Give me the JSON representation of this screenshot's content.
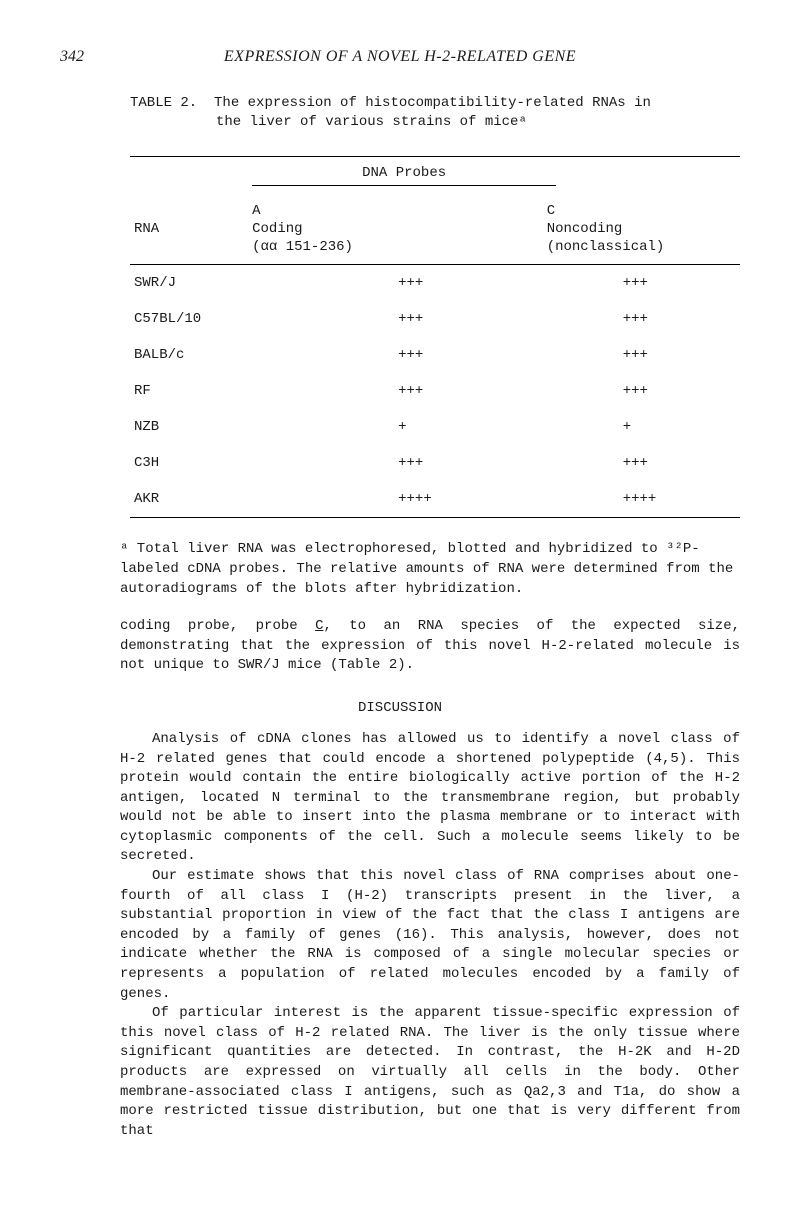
{
  "page_number": "342",
  "running_title": "EXPRESSION OF A NOVEL H-2-RELATED GENE",
  "table": {
    "label": "TABLE 2.",
    "caption_line1": "The expression of histocompatibility-related RNAs in",
    "caption_line2": "the liver of various strains of miceᵃ",
    "probes_label": "DNA Probes",
    "rna_label": "RNA",
    "colA_top": "A",
    "colA_mid": "Coding",
    "colA_bot": "(αα 151-236)",
    "colC_top": "C",
    "colC_mid": "Noncoding",
    "colC_bot": "(nonclassical)",
    "rows": [
      {
        "rna": "SWR/J",
        "a": "+++",
        "c": "+++"
      },
      {
        "rna": "C57BL/10",
        "a": "+++",
        "c": "+++"
      },
      {
        "rna": "BALB/c",
        "a": "+++",
        "c": "+++"
      },
      {
        "rna": "RF",
        "a": "+++",
        "c": "+++"
      },
      {
        "rna": "NZB",
        "a": "+",
        "c": "+"
      },
      {
        "rna": "C3H",
        "a": "+++",
        "c": "+++"
      },
      {
        "rna": "AKR",
        "a": "++++",
        "c": "++++"
      }
    ]
  },
  "footnote": "ᵃ Total liver RNA was electrophoresed, blotted and hybridized to ³²P-labeled cDNA probes.  The relative amounts of RNA were determined from the autoradiograms of the blots after hybridization.",
  "para_coding_pre": "coding probe, probe ",
  "para_coding_letter": "C",
  "para_coding_post": ", to an RNA species of the expected size, demonstrating that the expression of this novel H-2-related molecule is not unique to SWR/J mice (Table 2).",
  "discussion_heading": "DISCUSSION",
  "body1": "Analysis of cDNA clones has allowed us to identify a novel class of H-2 related genes that could encode a shortened polypeptide (4,5).  This protein would contain the entire biologically active portion of the H-2 antigen, located N terminal to the transmembrane region, but probably would not be able to insert into the plasma membrane or to interact with cytoplasmic components of the cell.  Such a molecule seems likely to be secreted.",
  "body2": "Our estimate shows that this novel class of RNA comprises about one-fourth of all class I (H-2) transcripts present in the liver, a substantial proportion in view of the fact that the class I antigens are encoded by a family of genes (16).  This analysis, however, does not indicate whether the RNA is composed of a single molecular species or represents a population of related molecules encoded by a family of genes.",
  "body3": "Of particular interest is the apparent tissue-specific expression of this novel class of H-2 related RNA.  The liver is the only tissue where significant quantities are detected.  In contrast, the H-2K and H-2D products are expressed on virtually all cells in the body.  Other membrane-associated class I antigens, such as Qa2,3 and T1a, do show a more restricted tissue distribution, but one that is very different from that"
}
